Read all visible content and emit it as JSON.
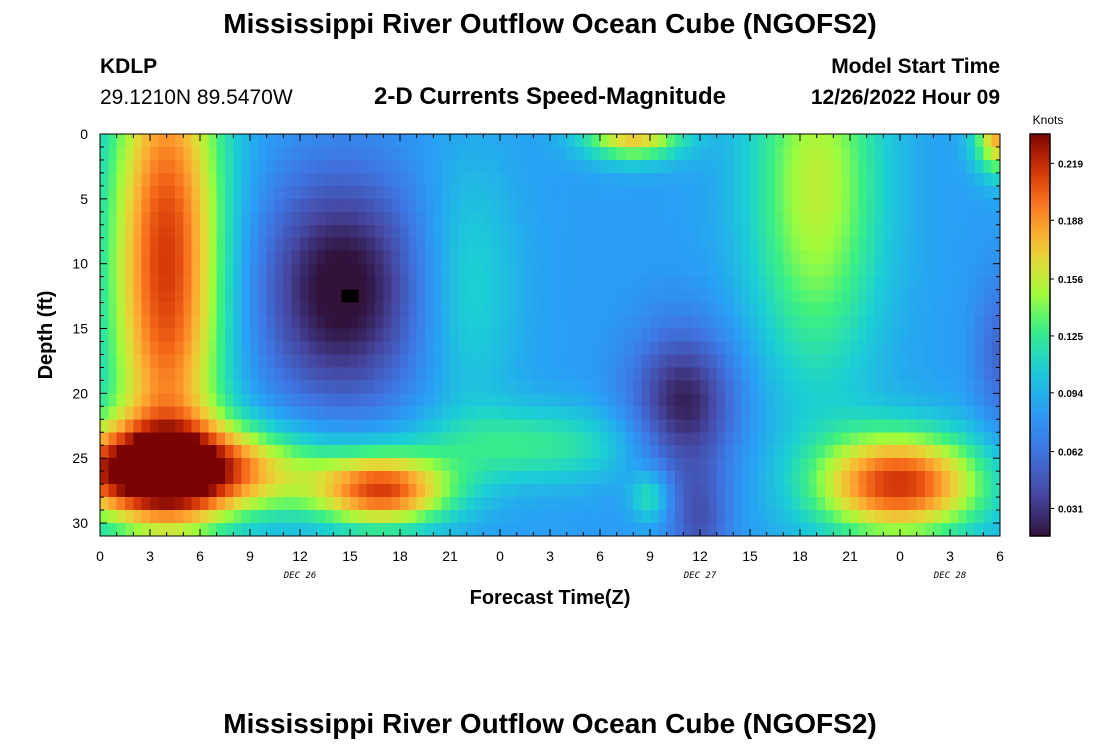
{
  "header": {
    "title": "Mississippi River Outflow Ocean Cube (NGOFS2)",
    "station_id": "KDLP",
    "coords": "29.1210N  89.5470W",
    "subtitle": "2-D Currents Speed-Magnitude",
    "model_start_label": "Model Start Time",
    "model_start_value": "12/26/2022 Hour 09"
  },
  "footer": {
    "title": "Mississippi River Outflow Ocean Cube (NGOFS2)"
  },
  "chart_data": {
    "type": "heatmap",
    "xlabel": "Forecast Time(Z)",
    "ylabel": "Depth (ft)",
    "x_range_hours": [
      0,
      54
    ],
    "y_range_ft": [
      0,
      31
    ],
    "y_inverted": true,
    "x_tick_labels": [
      "0",
      "3",
      "6",
      "9",
      "12",
      "15",
      "18",
      "21",
      "0",
      "3",
      "6",
      "9",
      "12",
      "15",
      "18",
      "21",
      "0",
      "3",
      "6"
    ],
    "y_ticks": [
      0,
      5,
      10,
      15,
      20,
      25,
      30
    ],
    "day_labels": [
      {
        "text": "DEC 26",
        "hour": 12
      },
      {
        "text": "DEC 27",
        "hour": 36
      },
      {
        "text": "DEC 28",
        "hour": 51
      }
    ],
    "colorbar": {
      "unit": "Knots",
      "ticks": [
        0.031,
        0.062,
        0.094,
        0.125,
        0.156,
        0.188,
        0.219
      ],
      "range": [
        0.016,
        0.235
      ]
    },
    "field_description_knots": {
      "grid": "speed magnitude vs. forecast hour (x) and depth (y)",
      "features": [
        {
          "hour": 4,
          "depth": 10,
          "value": 0.21
        },
        {
          "hour": 0.5,
          "depth": 27,
          "value": 0.23
        },
        {
          "hour": 17,
          "depth": 28,
          "value": 0.2
        },
        {
          "hour": 14.8,
          "depth": 13,
          "value": 0.02
        },
        {
          "hour": 35,
          "depth": 20,
          "value": 0.035
        },
        {
          "hour": 48,
          "depth": 27,
          "value": 0.21
        },
        {
          "hour": 42,
          "depth": 3,
          "value": 0.17
        }
      ]
    }
  }
}
